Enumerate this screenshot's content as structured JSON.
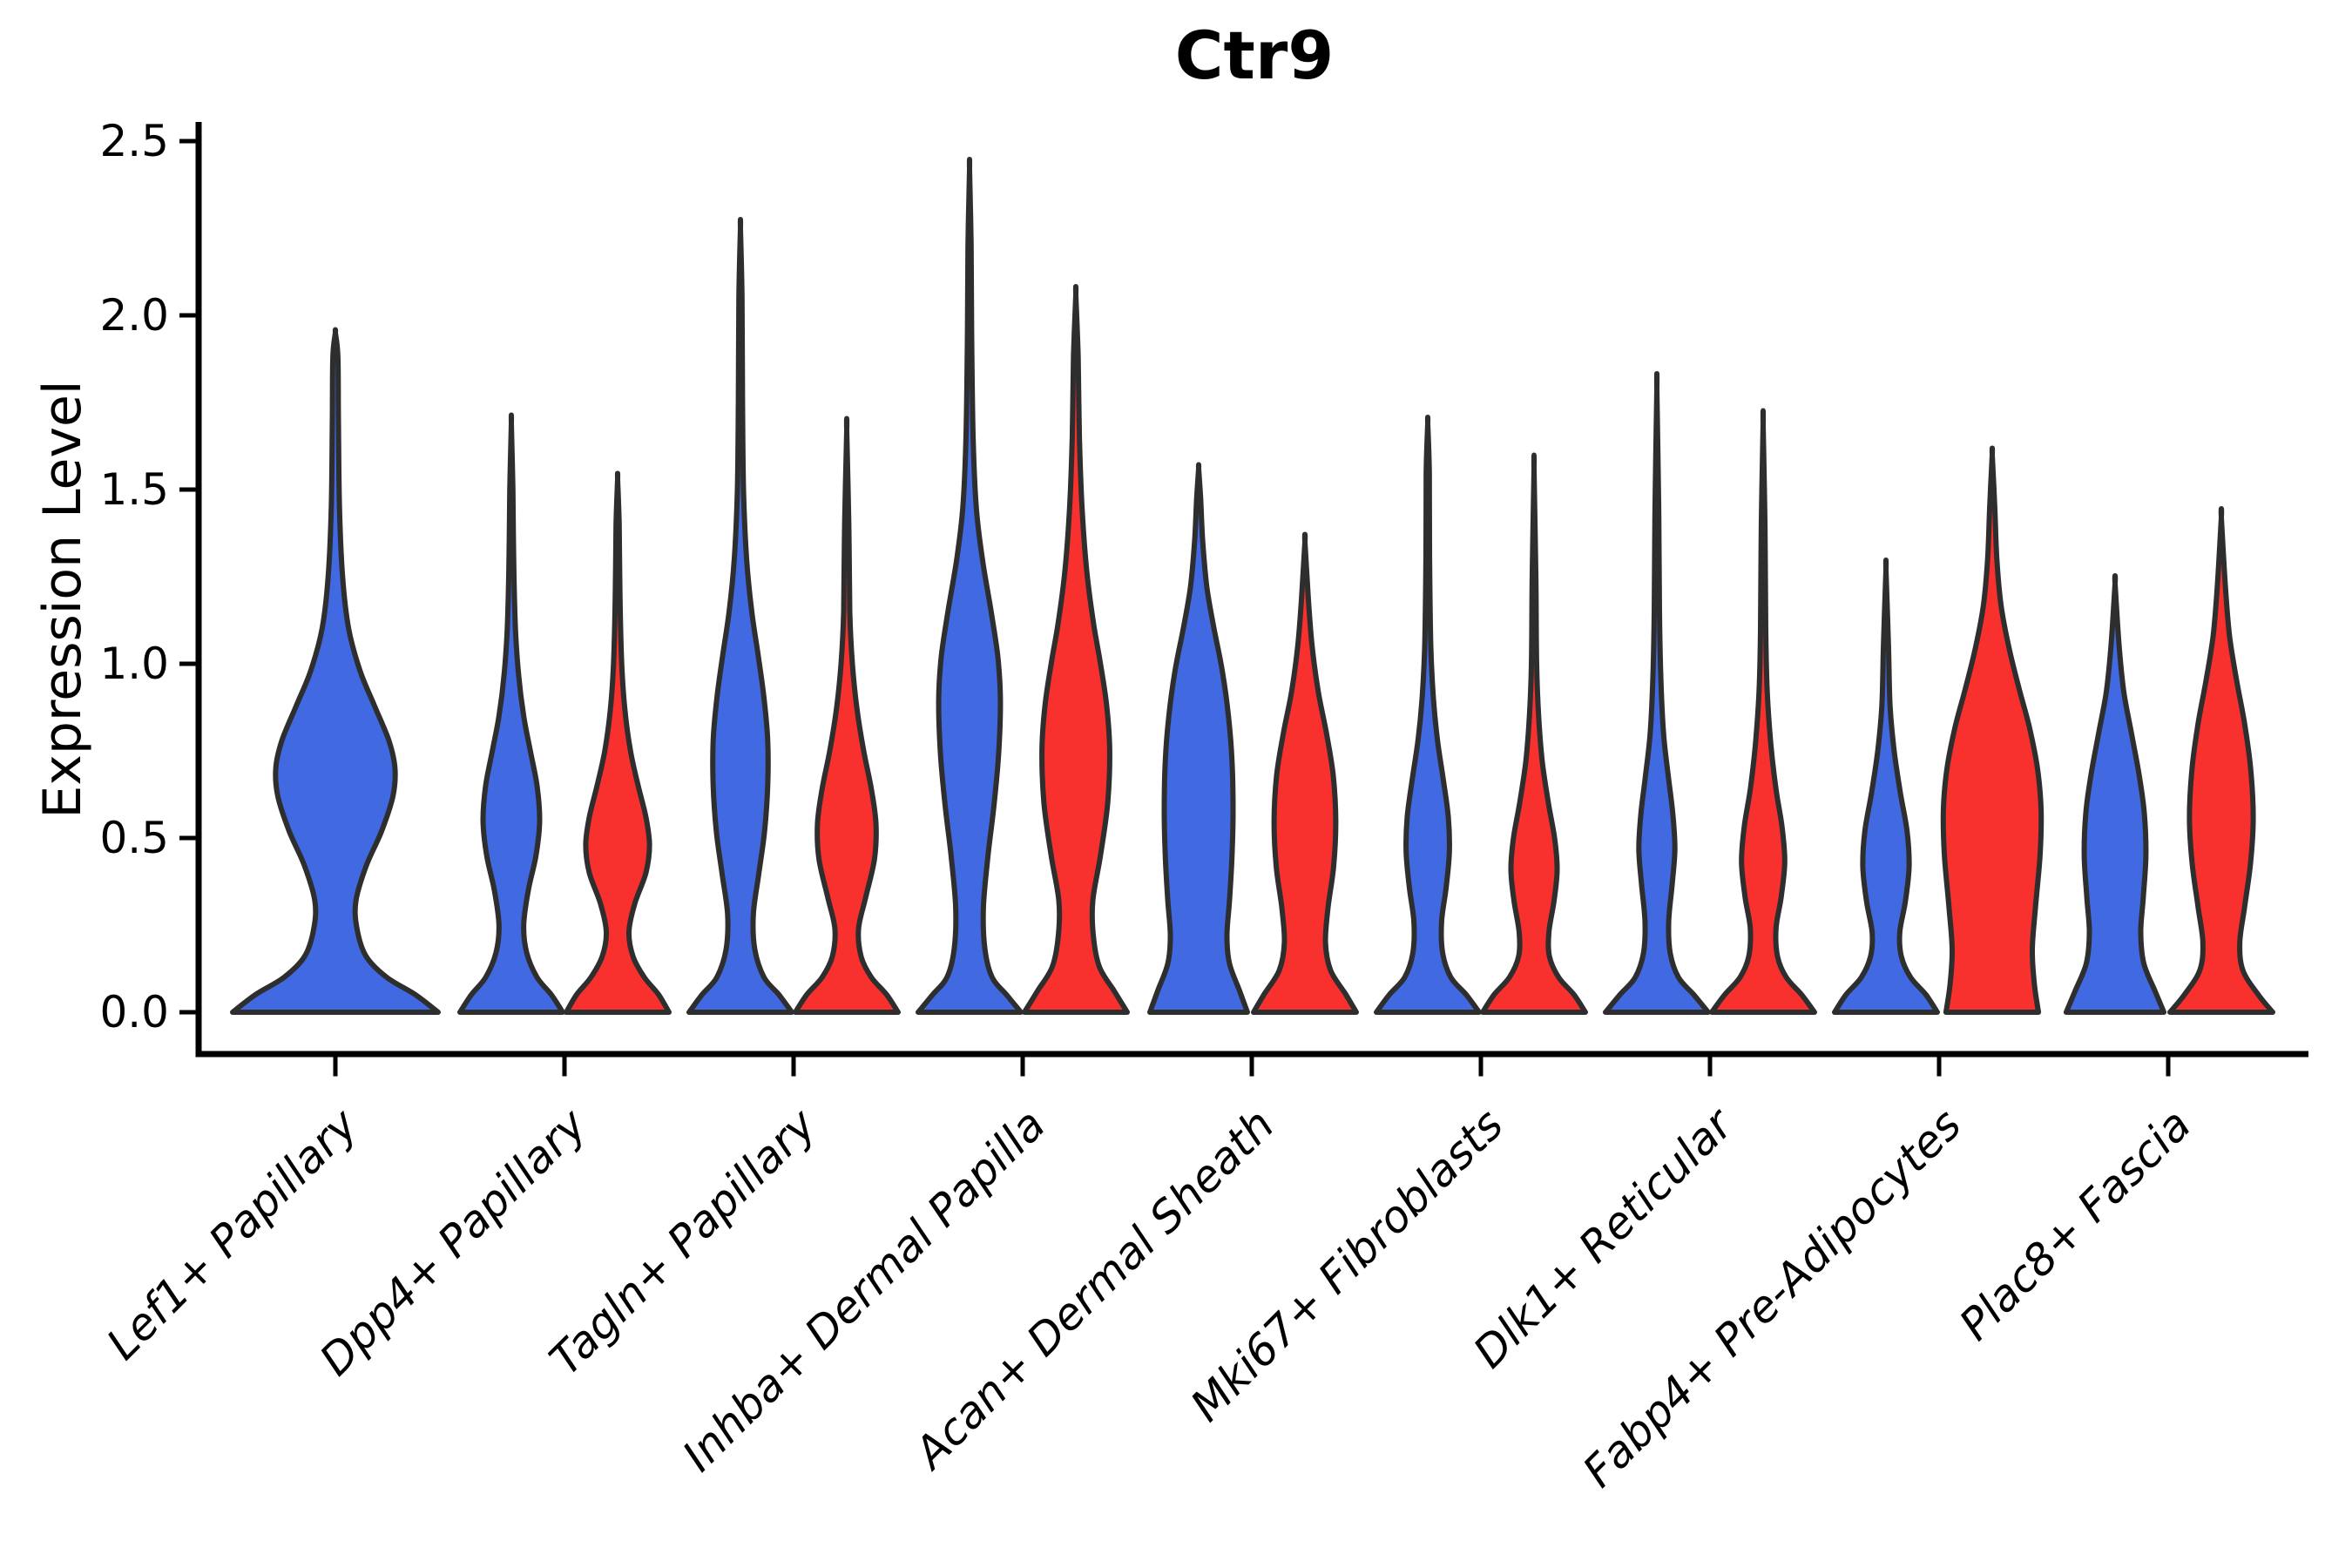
{
  "chart_data": {
    "type": "violin",
    "title": "Ctr9",
    "ylabel": "Expression Level",
    "xlabel": "",
    "ytick_labels": [
      "0.0",
      "0.5",
      "1.0",
      "1.5",
      "2.0",
      "2.5"
    ],
    "ytick_values": [
      0.0,
      0.5,
      1.0,
      1.5,
      2.0,
      2.5
    ],
    "ylim": [
      -0.12,
      2.56
    ],
    "grid": false,
    "legend": "none",
    "colors": {
      "blue": "#4169E1",
      "red": "#F8312F",
      "edge": "#2E2E2E",
      "axis": "#000000"
    },
    "categories": [
      "Lef1+ Papillary",
      "Dpp4+ Papillary",
      "Tagln+ Papillary",
      "Inhba+ Dermal Papilla",
      "Acan+ Dermal Sheath",
      "Mki67+ Fibroblasts",
      "Dlk1+ Reticular",
      "Fabp4+ Pre-Adipocytes",
      "Plac8+ Fascia"
    ],
    "violins": [
      {
        "category_index": 0,
        "color": "blue",
        "span": "full",
        "max": 1.95,
        "profile": [
          [
            0,
            1.0
          ],
          [
            0.05,
            0.78
          ],
          [
            0.1,
            0.5
          ],
          [
            0.16,
            0.3
          ],
          [
            0.24,
            0.21
          ],
          [
            0.32,
            0.2
          ],
          [
            0.42,
            0.3
          ],
          [
            0.52,
            0.45
          ],
          [
            0.62,
            0.56
          ],
          [
            0.7,
            0.58
          ],
          [
            0.78,
            0.52
          ],
          [
            0.88,
            0.38
          ],
          [
            0.98,
            0.24
          ],
          [
            1.1,
            0.13
          ],
          [
            1.25,
            0.07
          ],
          [
            1.45,
            0.04
          ],
          [
            1.7,
            0.03
          ],
          [
            1.88,
            0.025
          ],
          [
            1.95,
            0
          ]
        ]
      },
      {
        "category_index": 1,
        "color": "blue",
        "span": "half",
        "max": 1.69,
        "profile": [
          [
            0,
            1.0
          ],
          [
            0.05,
            0.78
          ],
          [
            0.1,
            0.5
          ],
          [
            0.17,
            0.3
          ],
          [
            0.25,
            0.24
          ],
          [
            0.35,
            0.33
          ],
          [
            0.45,
            0.48
          ],
          [
            0.55,
            0.55
          ],
          [
            0.65,
            0.5
          ],
          [
            0.75,
            0.37
          ],
          [
            0.85,
            0.24
          ],
          [
            0.97,
            0.14
          ],
          [
            1.1,
            0.08
          ],
          [
            1.3,
            0.045
          ],
          [
            1.5,
            0.03
          ],
          [
            1.69,
            0
          ]
        ]
      },
      {
        "category_index": 1,
        "color": "red",
        "span": "half",
        "max": 1.53,
        "profile": [
          [
            0,
            1.0
          ],
          [
            0.05,
            0.8
          ],
          [
            0.1,
            0.52
          ],
          [
            0.16,
            0.3
          ],
          [
            0.23,
            0.22
          ],
          [
            0.31,
            0.33
          ],
          [
            0.4,
            0.55
          ],
          [
            0.48,
            0.62
          ],
          [
            0.56,
            0.55
          ],
          [
            0.65,
            0.4
          ],
          [
            0.75,
            0.25
          ],
          [
            0.87,
            0.14
          ],
          [
            1.0,
            0.08
          ],
          [
            1.2,
            0.045
          ],
          [
            1.4,
            0.03
          ],
          [
            1.53,
            0
          ]
        ]
      },
      {
        "category_index": 2,
        "color": "blue",
        "span": "half",
        "max": 2.25,
        "profile": [
          [
            0,
            1.0
          ],
          [
            0.05,
            0.75
          ],
          [
            0.1,
            0.46
          ],
          [
            0.18,
            0.28
          ],
          [
            0.28,
            0.25
          ],
          [
            0.4,
            0.36
          ],
          [
            0.52,
            0.47
          ],
          [
            0.65,
            0.53
          ],
          [
            0.78,
            0.53
          ],
          [
            0.9,
            0.46
          ],
          [
            1.02,
            0.35
          ],
          [
            1.15,
            0.22
          ],
          [
            1.3,
            0.12
          ],
          [
            1.5,
            0.06
          ],
          [
            1.75,
            0.04
          ],
          [
            2.05,
            0.03
          ],
          [
            2.25,
            0
          ]
        ]
      },
      {
        "category_index": 2,
        "color": "red",
        "span": "half",
        "max": 1.67,
        "profile": [
          [
            0,
            1.0
          ],
          [
            0.05,
            0.78
          ],
          [
            0.1,
            0.48
          ],
          [
            0.16,
            0.28
          ],
          [
            0.24,
            0.23
          ],
          [
            0.33,
            0.37
          ],
          [
            0.44,
            0.54
          ],
          [
            0.54,
            0.57
          ],
          [
            0.64,
            0.48
          ],
          [
            0.75,
            0.33
          ],
          [
            0.87,
            0.2
          ],
          [
            1.0,
            0.11
          ],
          [
            1.15,
            0.06
          ],
          [
            1.4,
            0.04
          ],
          [
            1.67,
            0
          ]
        ]
      },
      {
        "category_index": 3,
        "color": "blue",
        "span": "half",
        "max": 2.42,
        "profile": [
          [
            0,
            1.0
          ],
          [
            0.05,
            0.72
          ],
          [
            0.1,
            0.44
          ],
          [
            0.18,
            0.3
          ],
          [
            0.3,
            0.27
          ],
          [
            0.45,
            0.36
          ],
          [
            0.6,
            0.48
          ],
          [
            0.75,
            0.57
          ],
          [
            0.9,
            0.6
          ],
          [
            1.02,
            0.55
          ],
          [
            1.15,
            0.42
          ],
          [
            1.3,
            0.25
          ],
          [
            1.45,
            0.13
          ],
          [
            1.65,
            0.07
          ],
          [
            1.95,
            0.04
          ],
          [
            2.2,
            0.03
          ],
          [
            2.42,
            0
          ]
        ]
      },
      {
        "category_index": 3,
        "color": "red",
        "span": "half",
        "max": 2.06,
        "profile": [
          [
            0,
            1.0
          ],
          [
            0.06,
            0.75
          ],
          [
            0.13,
            0.46
          ],
          [
            0.22,
            0.34
          ],
          [
            0.32,
            0.33
          ],
          [
            0.45,
            0.48
          ],
          [
            0.6,
            0.62
          ],
          [
            0.75,
            0.66
          ],
          [
            0.88,
            0.6
          ],
          [
            1.0,
            0.48
          ],
          [
            1.12,
            0.34
          ],
          [
            1.27,
            0.21
          ],
          [
            1.45,
            0.12
          ],
          [
            1.65,
            0.07
          ],
          [
            1.88,
            0.045
          ],
          [
            2.06,
            0
          ]
        ]
      },
      {
        "category_index": 4,
        "color": "blue",
        "span": "half",
        "max": 1.56,
        "profile": [
          [
            0,
            0.95
          ],
          [
            0.06,
            0.8
          ],
          [
            0.14,
            0.6
          ],
          [
            0.22,
            0.55
          ],
          [
            0.32,
            0.6
          ],
          [
            0.45,
            0.65
          ],
          [
            0.58,
            0.67
          ],
          [
            0.72,
            0.65
          ],
          [
            0.85,
            0.58
          ],
          [
            0.98,
            0.46
          ],
          [
            1.1,
            0.3
          ],
          [
            1.22,
            0.16
          ],
          [
            1.35,
            0.08
          ],
          [
            1.47,
            0.04
          ],
          [
            1.56,
            0
          ]
        ]
      },
      {
        "category_index": 4,
        "color": "red",
        "span": "half",
        "max": 1.35,
        "profile": [
          [
            0,
            1.0
          ],
          [
            0.05,
            0.8
          ],
          [
            0.12,
            0.5
          ],
          [
            0.2,
            0.4
          ],
          [
            0.3,
            0.45
          ],
          [
            0.42,
            0.56
          ],
          [
            0.55,
            0.6
          ],
          [
            0.68,
            0.55
          ],
          [
            0.8,
            0.42
          ],
          [
            0.92,
            0.26
          ],
          [
            1.05,
            0.14
          ],
          [
            1.18,
            0.07
          ],
          [
            1.35,
            0
          ]
        ]
      },
      {
        "category_index": 5,
        "color": "blue",
        "span": "half",
        "max": 1.69,
        "profile": [
          [
            0,
            1.0
          ],
          [
            0.05,
            0.75
          ],
          [
            0.1,
            0.45
          ],
          [
            0.17,
            0.29
          ],
          [
            0.26,
            0.27
          ],
          [
            0.36,
            0.36
          ],
          [
            0.46,
            0.42
          ],
          [
            0.56,
            0.4
          ],
          [
            0.67,
            0.3
          ],
          [
            0.78,
            0.19
          ],
          [
            0.9,
            0.11
          ],
          [
            1.05,
            0.06
          ],
          [
            1.3,
            0.035
          ],
          [
            1.55,
            0.03
          ],
          [
            1.69,
            0
          ]
        ]
      },
      {
        "category_index": 5,
        "color": "red",
        "span": "half",
        "max": 1.56,
        "profile": [
          [
            0,
            1.0
          ],
          [
            0.05,
            0.78
          ],
          [
            0.1,
            0.48
          ],
          [
            0.16,
            0.3
          ],
          [
            0.23,
            0.29
          ],
          [
            0.32,
            0.39
          ],
          [
            0.41,
            0.45
          ],
          [
            0.5,
            0.4
          ],
          [
            0.6,
            0.28
          ],
          [
            0.72,
            0.16
          ],
          [
            0.85,
            0.09
          ],
          [
            1.0,
            0.05
          ],
          [
            1.25,
            0.035
          ],
          [
            1.56,
            0
          ]
        ]
      },
      {
        "category_index": 6,
        "color": "blue",
        "span": "half",
        "max": 1.79,
        "profile": [
          [
            0,
            1.0
          ],
          [
            0.05,
            0.72
          ],
          [
            0.1,
            0.42
          ],
          [
            0.17,
            0.26
          ],
          [
            0.26,
            0.23
          ],
          [
            0.37,
            0.3
          ],
          [
            0.47,
            0.35
          ],
          [
            0.57,
            0.31
          ],
          [
            0.68,
            0.22
          ],
          [
            0.8,
            0.13
          ],
          [
            0.95,
            0.08
          ],
          [
            1.15,
            0.05
          ],
          [
            1.45,
            0.035
          ],
          [
            1.79,
            0
          ]
        ]
      },
      {
        "category_index": 6,
        "color": "red",
        "span": "half",
        "max": 1.69,
        "profile": [
          [
            0,
            1.0
          ],
          [
            0.05,
            0.75
          ],
          [
            0.1,
            0.45
          ],
          [
            0.16,
            0.28
          ],
          [
            0.24,
            0.25
          ],
          [
            0.33,
            0.35
          ],
          [
            0.43,
            0.42
          ],
          [
            0.53,
            0.37
          ],
          [
            0.64,
            0.25
          ],
          [
            0.77,
            0.15
          ],
          [
            0.92,
            0.08
          ],
          [
            1.1,
            0.05
          ],
          [
            1.4,
            0.035
          ],
          [
            1.69,
            0
          ]
        ]
      },
      {
        "category_index": 7,
        "color": "blue",
        "span": "half",
        "max": 1.27,
        "profile": [
          [
            0,
            1.0
          ],
          [
            0.05,
            0.78
          ],
          [
            0.1,
            0.48
          ],
          [
            0.16,
            0.3
          ],
          [
            0.23,
            0.27
          ],
          [
            0.32,
            0.38
          ],
          [
            0.42,
            0.45
          ],
          [
            0.52,
            0.41
          ],
          [
            0.63,
            0.28
          ],
          [
            0.75,
            0.16
          ],
          [
            0.88,
            0.08
          ],
          [
            1.05,
            0.05
          ],
          [
            1.27,
            0
          ]
        ]
      },
      {
        "category_index": 7,
        "color": "red",
        "span": "half",
        "max": 1.6,
        "profile": [
          [
            0,
            0.9
          ],
          [
            0.08,
            0.82
          ],
          [
            0.18,
            0.78
          ],
          [
            0.3,
            0.84
          ],
          [
            0.45,
            0.93
          ],
          [
            0.58,
            0.95
          ],
          [
            0.7,
            0.88
          ],
          [
            0.82,
            0.72
          ],
          [
            0.93,
            0.52
          ],
          [
            1.05,
            0.32
          ],
          [
            1.17,
            0.17
          ],
          [
            1.3,
            0.09
          ],
          [
            1.45,
            0.05
          ],
          [
            1.6,
            0
          ]
        ]
      },
      {
        "category_index": 8,
        "color": "blue",
        "span": "half",
        "max": 1.23,
        "profile": [
          [
            0,
            0.95
          ],
          [
            0.06,
            0.78
          ],
          [
            0.14,
            0.56
          ],
          [
            0.23,
            0.5
          ],
          [
            0.33,
            0.55
          ],
          [
            0.45,
            0.6
          ],
          [
            0.57,
            0.57
          ],
          [
            0.68,
            0.47
          ],
          [
            0.8,
            0.32
          ],
          [
            0.92,
            0.17
          ],
          [
            1.05,
            0.08
          ],
          [
            1.23,
            0
          ]
        ]
      },
      {
        "category_index": 8,
        "color": "red",
        "span": "half",
        "max": 1.42,
        "profile": [
          [
            0,
            1.0
          ],
          [
            0.05,
            0.72
          ],
          [
            0.12,
            0.42
          ],
          [
            0.2,
            0.36
          ],
          [
            0.3,
            0.45
          ],
          [
            0.43,
            0.57
          ],
          [
            0.56,
            0.62
          ],
          [
            0.7,
            0.57
          ],
          [
            0.83,
            0.45
          ],
          [
            0.95,
            0.3
          ],
          [
            1.08,
            0.16
          ],
          [
            1.22,
            0.08
          ],
          [
            1.42,
            0
          ]
        ]
      }
    ]
  }
}
